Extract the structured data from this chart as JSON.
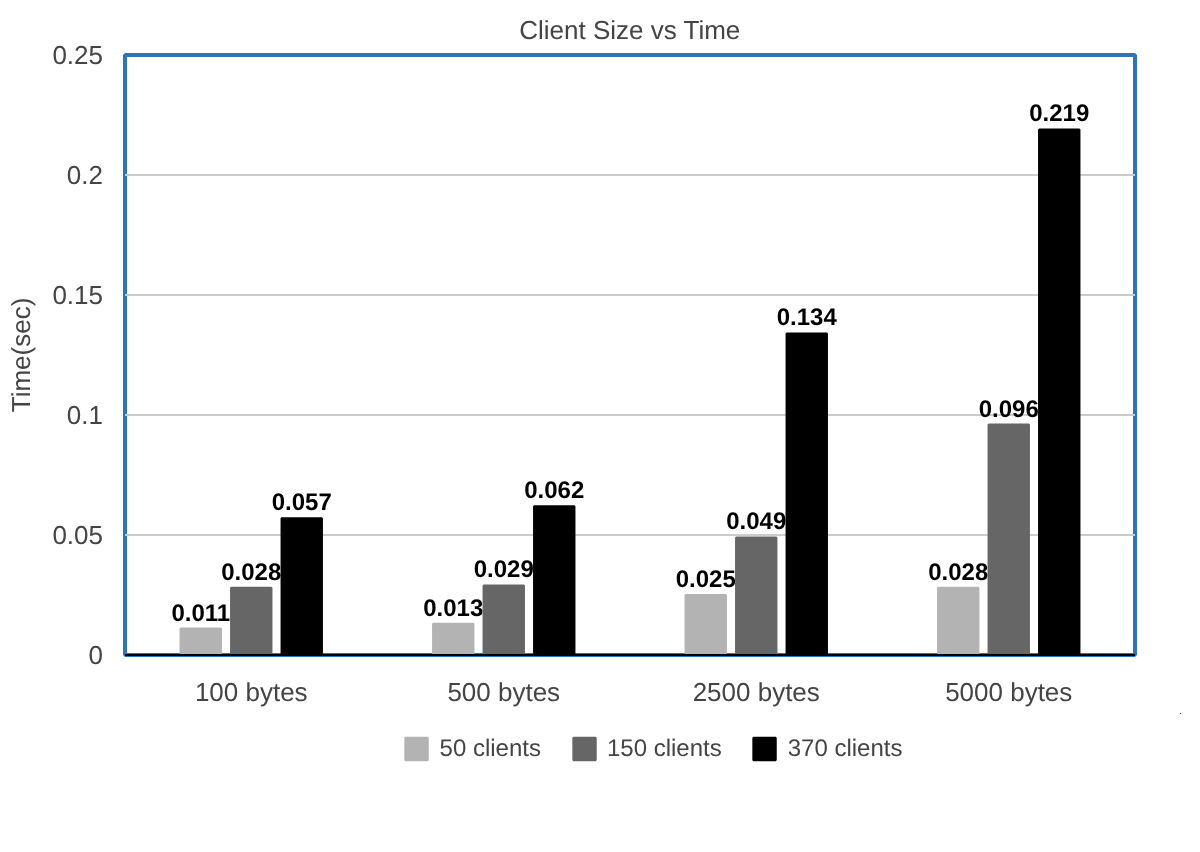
{
  "chart_data": {
    "type": "bar",
    "title": "Client Size vs Time",
    "ylabel": "Time(sec)",
    "categories": [
      "100 bytes",
      "500 bytes",
      "2500 bytes",
      "5000 bytes"
    ],
    "series": [
      {
        "name": "50 clients",
        "color": "#b3b3b3",
        "values": [
          0.011,
          0.013,
          0.025,
          0.028
        ]
      },
      {
        "name": "150 clients",
        "color": "#666666",
        "values": [
          0.028,
          0.029,
          0.049,
          0.096
        ]
      },
      {
        "name": "370 clients",
        "color": "#000000",
        "values": [
          0.057,
          0.062,
          0.134,
          0.219
        ]
      }
    ],
    "ylim": [
      0,
      0.25
    ],
    "yticks": [
      0,
      0.05,
      0.1,
      0.15,
      0.2,
      0.25
    ],
    "grid": "y",
    "legend": "bottom",
    "data_labels": true
  }
}
